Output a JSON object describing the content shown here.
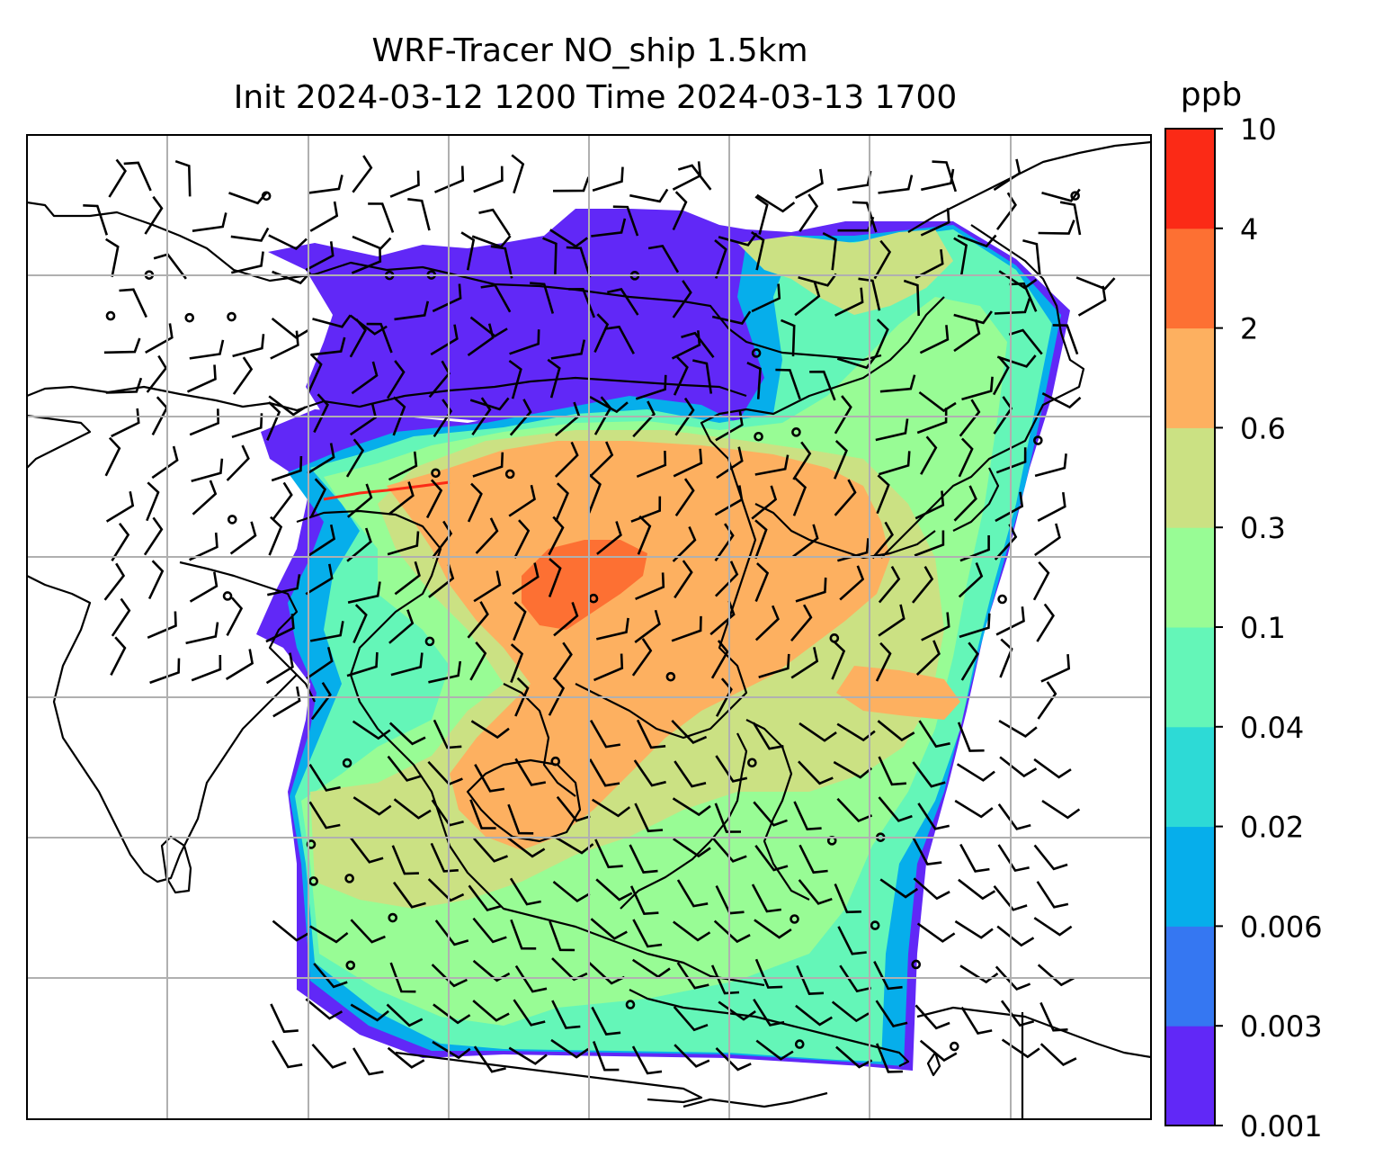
{
  "title": {
    "line1": "WRF-Tracer NO_ship 1.5km",
    "line2": "Init 2024-03-12 1200 Time 2024-03-13 1700"
  },
  "colorbar": {
    "unit": "ppb",
    "ticks": [
      "0.001",
      "0.003",
      "0.006",
      "0.02",
      "0.04",
      "0.1",
      "0.3",
      "0.6",
      "2",
      "4",
      "10"
    ],
    "colors": [
      "#6128f7",
      "#3577f2",
      "#06aeeb",
      "#2ddad6",
      "#64f6b8",
      "#98fc95",
      "#cbe183",
      "#fdb060",
      "#fd7033",
      "#fb2a16"
    ]
  },
  "colors": {
    "gridline": "#b0b0b0",
    "coastline": "#000000",
    "barb": "#000000"
  },
  "chart_data": {
    "type": "heatmap",
    "variable": "NO_ship",
    "unit": "ppb",
    "levels": [
      0.001,
      0.003,
      0.006,
      0.02,
      0.04,
      0.1,
      0.3,
      0.6,
      2,
      4,
      10
    ],
    "overlays": [
      "wind barbs",
      "coastlines",
      "gridlines"
    ],
    "grid": true
  }
}
